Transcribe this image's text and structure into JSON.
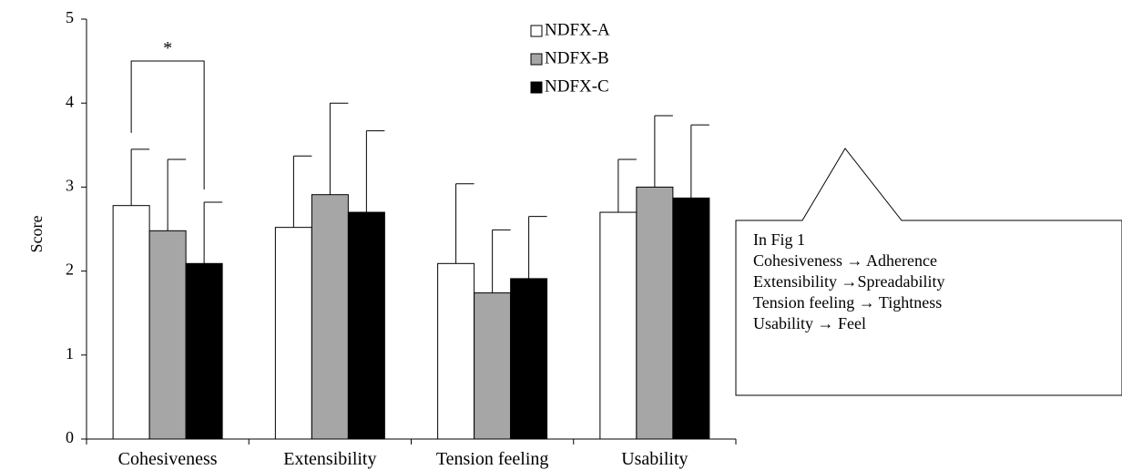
{
  "chart_data": {
    "type": "bar",
    "title": "",
    "xlabel": "",
    "ylabel": "Score",
    "ylim": [
      0,
      5
    ],
    "yticks": [
      0,
      1,
      2,
      3,
      4,
      5
    ],
    "grid": false,
    "legend_position": "top-center",
    "categories": [
      "Cohesiveness",
      "Extensibility",
      "Tension feeling",
      "Usability"
    ],
    "series": [
      {
        "name": "NDFX-A",
        "color": "#ffffff",
        "values": [
          2.78,
          2.52,
          2.09,
          2.7
        ],
        "errors": [
          0.67,
          0.85,
          0.95,
          0.63
        ]
      },
      {
        "name": "NDFX-B",
        "color": "#a6a6a6",
        "values": [
          2.48,
          2.91,
          1.74,
          3.0
        ],
        "errors": [
          0.85,
          1.09,
          0.75,
          0.85
        ]
      },
      {
        "name": "NDFX-C",
        "color": "#000000",
        "values": [
          2.09,
          2.7,
          1.91,
          2.87
        ],
        "errors": [
          0.73,
          0.97,
          0.74,
          0.87
        ]
      }
    ],
    "significance": [
      {
        "category": "Cohesiveness",
        "between": [
          "NDFX-A",
          "NDFX-C"
        ],
        "label": "*"
      }
    ]
  },
  "callout": {
    "lines": [
      "In Fig 1",
      "Cohesiveness → Adherence",
      "Extensibility →Spreadability",
      "Tension feeling → Tightness",
      "Usability → Feel"
    ]
  }
}
